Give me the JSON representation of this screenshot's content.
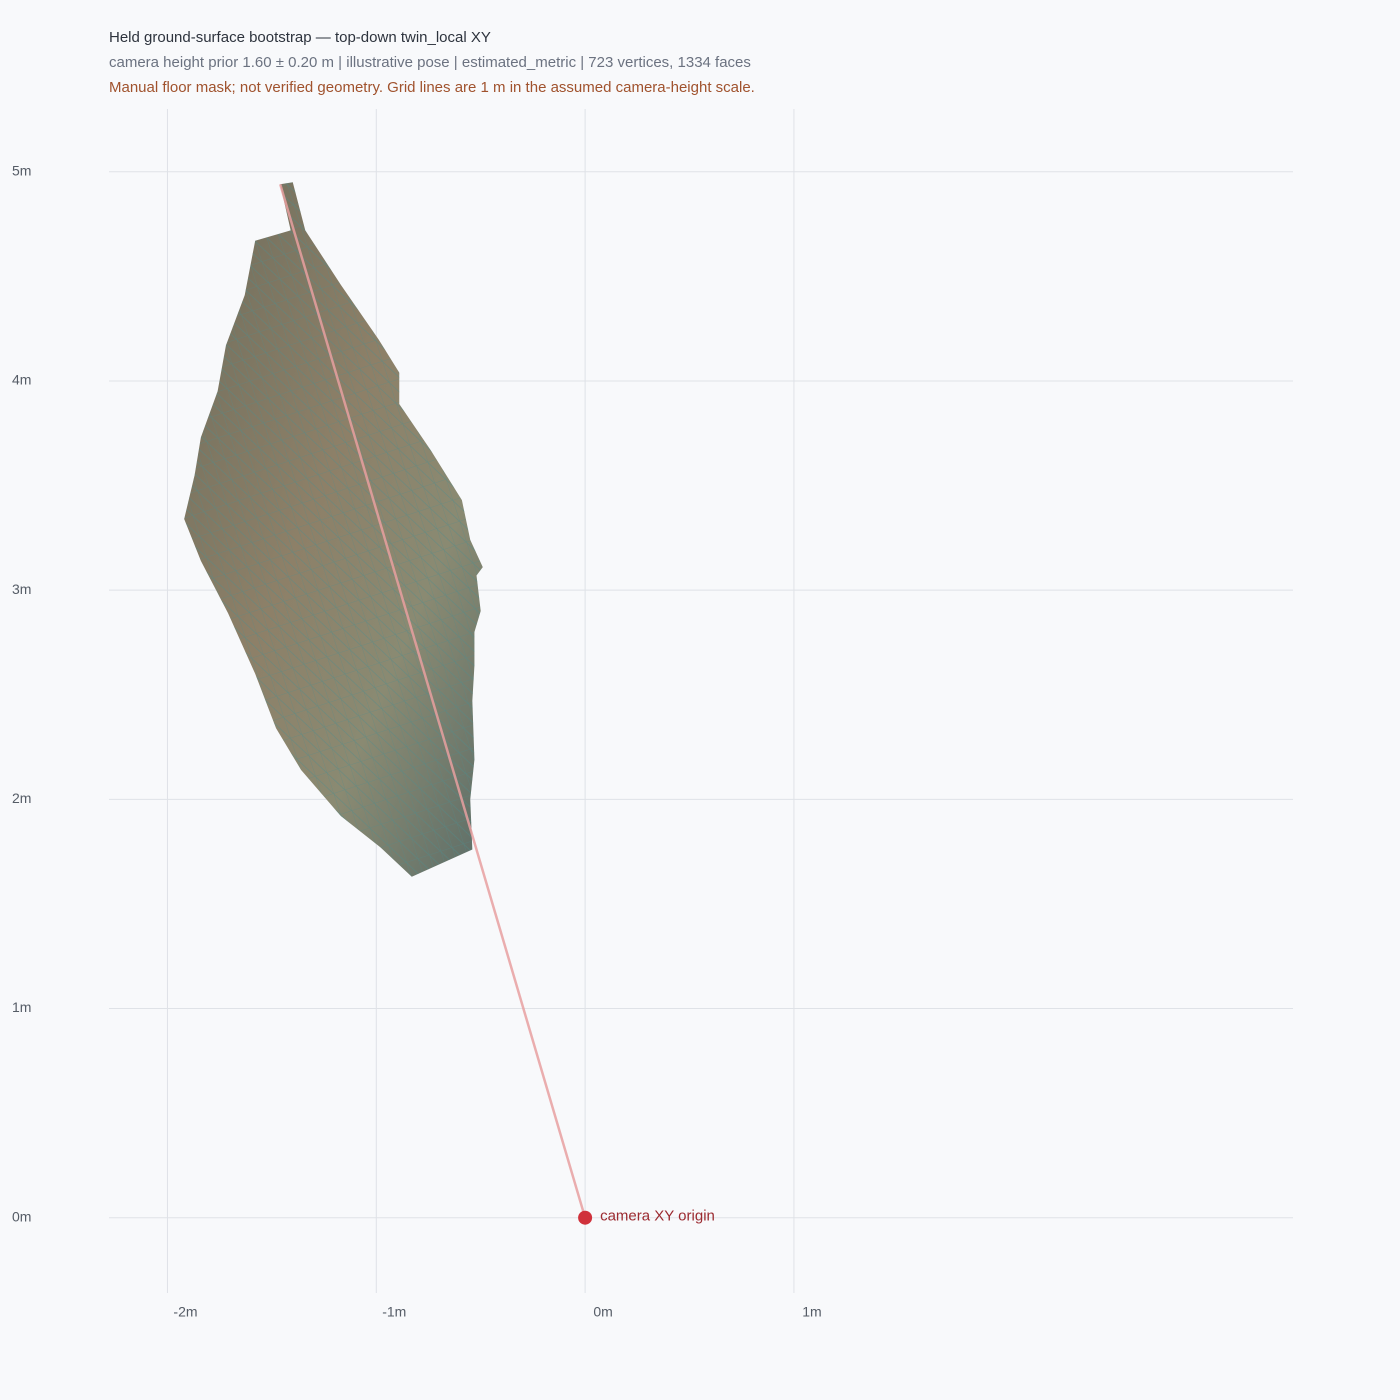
{
  "chart_data": {
    "type": "mesh-topdown",
    "title": "Held ground-surface bootstrap — top-down twin_local XY",
    "subtitle": "camera height prior 1.60 ± 0.20 m | illustrative pose | estimated_metric | 723 vertices, 1334 faces",
    "note": "Manual floor mask; not verified geometry. Grid lines are 1 m in the assumed camera-height scale.",
    "xlim": [
      -2.28,
      3.39
    ],
    "ylim": [
      -0.36,
      5.3
    ],
    "xticks": [
      {
        "value": -2,
        "label": "-2m"
      },
      {
        "value": -1,
        "label": "-1m"
      },
      {
        "value": 0,
        "label": "0m"
      },
      {
        "value": 1,
        "label": "1m"
      }
    ],
    "yticks": [
      {
        "value": 0,
        "label": "0m"
      },
      {
        "value": 1,
        "label": "1m"
      },
      {
        "value": 2,
        "label": "2m"
      },
      {
        "value": 3,
        "label": "3m"
      },
      {
        "value": 4,
        "label": "4m"
      },
      {
        "value": 5,
        "label": "5m"
      }
    ],
    "grid": true,
    "mesh": {
      "x": [
        -1.46,
        -1.4,
        -1.34,
        -1.17,
        -0.99,
        -0.89,
        -0.89,
        -0.74,
        -0.59,
        -0.55,
        -0.49,
        -0.52,
        -0.5,
        -0.53,
        -0.53,
        -0.54,
        -0.53,
        -0.55,
        -0.54,
        -0.83,
        -0.98,
        -1.17,
        -1.36,
        -1.48,
        -1.58,
        -1.71,
        -1.84,
        -1.92,
        -1.87,
        -1.84,
        -1.76,
        -1.72,
        -1.63,
        -1.58,
        -1.41
      ],
      "y": [
        4.94,
        4.95,
        4.72,
        4.46,
        4.2,
        4.04,
        3.89,
        3.67,
        3.43,
        3.24,
        3.11,
        3.07,
        2.9,
        2.8,
        2.64,
        2.47,
        2.19,
        2.0,
        1.76,
        1.63,
        1.77,
        1.92,
        2.14,
        2.34,
        2.6,
        2.89,
        3.14,
        3.34,
        3.55,
        3.73,
        3.95,
        4.17,
        4.41,
        4.67,
        4.72
      ]
    },
    "heading": {
      "x": [
        0,
        -1.46
      ],
      "y": [
        0,
        4.94
      ],
      "color": "#e8a0a0"
    },
    "camera": {
      "x": 0,
      "y": 0,
      "label": "camera XY origin",
      "color": "#d0313b"
    }
  }
}
